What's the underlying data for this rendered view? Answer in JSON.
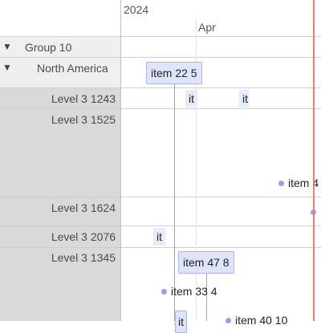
{
  "header": {
    "year": "2024",
    "month": "Apr"
  },
  "groups": [
    {
      "label": "Group 10",
      "toggle": "▼"
    },
    {
      "label": "North America",
      "toggle": "▼"
    }
  ],
  "rows": [
    {
      "label": "Level 3 1243"
    },
    {
      "label": "Level 3 1525"
    },
    {
      "label": "Level 3 1624"
    },
    {
      "label": "Level 3 2076"
    },
    {
      "label": "Level 3 1345"
    }
  ],
  "items": {
    "item_22": "item 22 5",
    "row1243_a": "it",
    "row1243_b": "it",
    "item_4": "item 4",
    "row2076_a": "it",
    "item_47": "item 47 8",
    "item_33": "item 33 4",
    "row1345_small": "it",
    "item_40": "item 40 10"
  },
  "colors": {
    "today_line": "#ef7a73",
    "item_fill": "#dfe4fb",
    "item_border": "#a8b5ee",
    "point": "#8fa2ec",
    "sidebar_grey": "#d9d9d9"
  }
}
